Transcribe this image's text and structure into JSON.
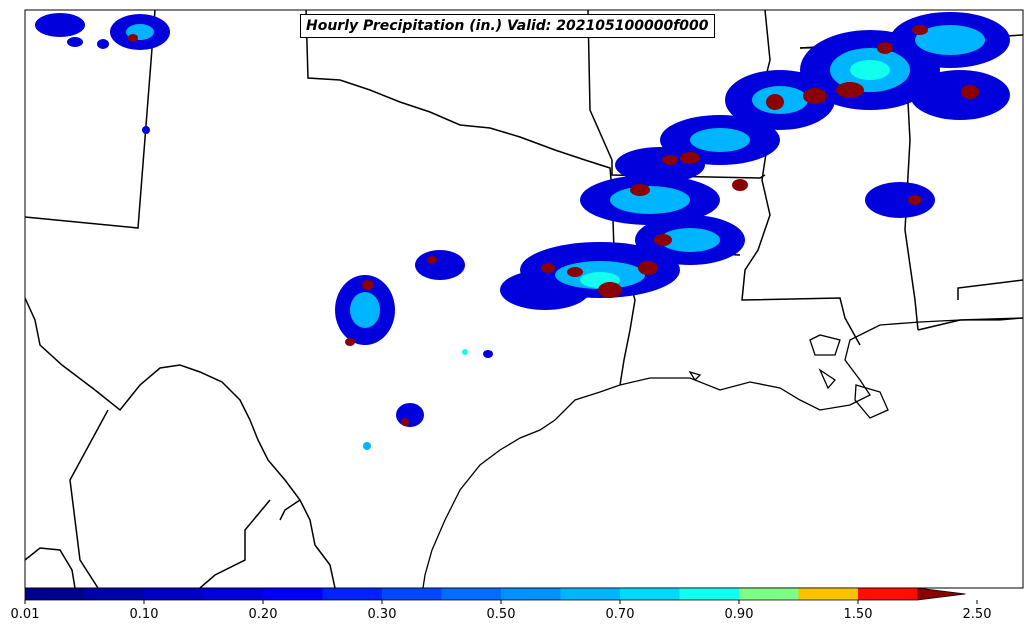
{
  "title": "Hourly Precipitation (in.) Valid: 202105100000f000",
  "colorbar": {
    "tick_labels": [
      "0.01",
      "0.10",
      "0.20",
      "0.30",
      "0.50",
      "0.70",
      "0.90",
      "1.50",
      "2.50"
    ],
    "colors": [
      "#00008f",
      "#0000a8",
      "#0000c4",
      "#0000dd",
      "#0000f8",
      "#0022ff",
      "#0048ff",
      "#006dff",
      "#0091ff",
      "#00b5ff",
      "#00d9ff",
      "#10ffee",
      "#7bff84",
      "#fbc200",
      "#ff0d00",
      "#8b0000"
    ],
    "extend": "max"
  },
  "legend_colors": {
    "outline": "#000000",
    "low": "#0000dd",
    "mid": "#00b5ff",
    "high": "#10ffee",
    "peak": "#8b0000"
  }
}
